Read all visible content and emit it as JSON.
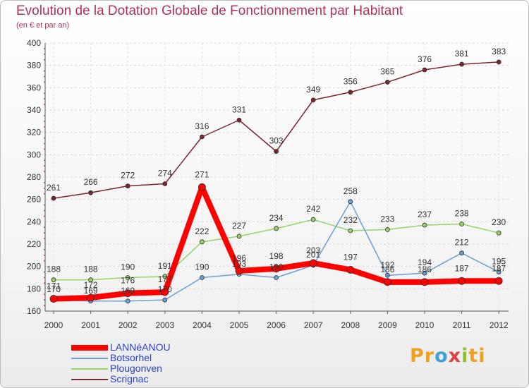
{
  "chart_data": {
    "type": "line",
    "title": "Evolution de la Dotation Globale de Fonctionnement par Habitant",
    "subtitle": "(en € et par an)",
    "xlabel": "",
    "ylabel": "",
    "ylim": [
      160,
      400
    ],
    "y_ticks": [
      160,
      180,
      200,
      220,
      240,
      260,
      280,
      300,
      320,
      340,
      360,
      380,
      400
    ],
    "categories": [
      "2000",
      "2001",
      "2002",
      "2003",
      "2004",
      "2005",
      "2006",
      "2007",
      "2008",
      "2009",
      "2010",
      "2011",
      "2012"
    ],
    "grid": true,
    "legend_position": "bottom-left",
    "series": [
      {
        "name": "Scrignac",
        "color": "#7a2530",
        "values": [
          261,
          266,
          272,
          274,
          316,
          331,
          303,
          349,
          356,
          365,
          376,
          381,
          383
        ]
      },
      {
        "name": "Plougonven",
        "color": "#99d16a",
        "values": [
          188,
          188,
          190,
          191,
          222,
          227,
          234,
          242,
          232,
          233,
          237,
          238,
          230
        ]
      },
      {
        "name": "Botsorhel",
        "color": "#6b9fd0",
        "values": [
          170,
          169,
          169,
          170,
          190,
          193,
          190,
          201,
          258,
          192,
          194,
          212,
          195
        ]
      },
      {
        "name": "LANNéANOU",
        "color": "#ff0000",
        "values": [
          171,
          172,
          176,
          177,
          271,
          196,
          198,
          203,
          197,
          186,
          186,
          187,
          187
        ]
      }
    ]
  },
  "legend": {
    "items": [
      {
        "name": "LANNéANOU",
        "color": "#ff0000"
      },
      {
        "name": "Botsorhel",
        "color": "#6b9fd0"
      },
      {
        "name": "Plougonven",
        "color": "#99d16a"
      },
      {
        "name": "Scrignac",
        "color": "#7a2530"
      }
    ]
  },
  "logo": {
    "p1": "Pr",
    "p2": "o",
    "p3": "x",
    "p4": "i",
    "p5": "ti"
  }
}
